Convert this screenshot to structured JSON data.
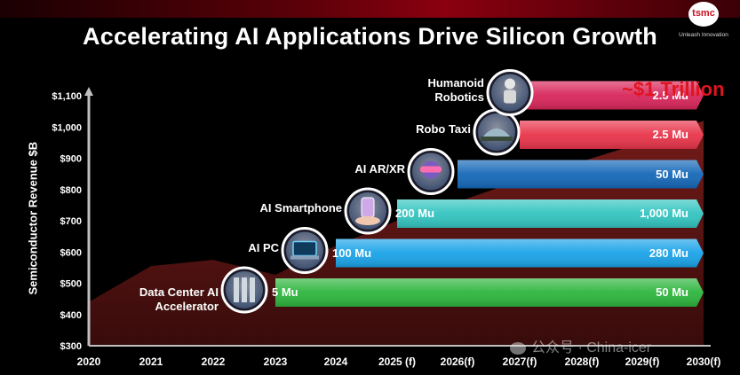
{
  "title": "Accelerating AI Applications Drive Silicon Growth",
  "logo": {
    "text": "tsmc",
    "tagline": "Unleash Innovation"
  },
  "watermark": "公众号 · China-icer",
  "chart_data": {
    "type": "bar",
    "ylabel": "Semiconductor Revenue $B",
    "yticks": [
      "$300",
      "$400",
      "$500",
      "$600",
      "$700",
      "$800",
      "$900",
      "$1,000",
      "$1,100"
    ],
    "ylim": [
      300,
      1100
    ],
    "xticks": [
      "2020",
      "2021",
      "2022",
      "2023",
      "2024",
      "2025 (f)",
      "2026(f)",
      "2027(f)",
      "2028(f)",
      "2029(f)",
      "2030(f)"
    ],
    "annotation": "~$1 Trillion",
    "area_revenue": [
      {
        "x": "2020",
        "y": 440
      },
      {
        "x": "2021",
        "y": 555
      },
      {
        "x": "2022",
        "y": 575
      },
      {
        "x": "2023",
        "y": 527
      },
      {
        "x": "2024",
        "y": 620
      },
      {
        "x": "2025 (f)",
        "y": 700
      },
      {
        "x": "2026(f)",
        "y": 760
      },
      {
        "x": "2027(f)",
        "y": 830
      },
      {
        "x": "2028(f)",
        "y": 890
      },
      {
        "x": "2029(f)",
        "y": 950
      },
      {
        "x": "2030(f)",
        "y": 1020
      }
    ],
    "applications": [
      {
        "name": "Data Center AI Accelerator",
        "label_lines": [
          "Data Center AI",
          "Accelerator"
        ],
        "start": "2023",
        "start_units": "5 Mu",
        "end_units": "50 Mu",
        "color": "#2db53d"
      },
      {
        "name": "AI PC",
        "label_lines": [
          "AI PC"
        ],
        "start": "2024",
        "start_units": "100 Mu",
        "end_units": "280 Mu",
        "color": "#1aa3e8"
      },
      {
        "name": "AI Smartphone",
        "label_lines": [
          "AI Smartphone"
        ],
        "start": "2025 (f)",
        "start_units": "200 Mu",
        "end_units": "1,000 Mu",
        "color": "#33c4c0"
      },
      {
        "name": "AI AR/XR",
        "label_lines": [
          "AI AR/XR"
        ],
        "start": "2026(f)",
        "start_units": "",
        "end_units": "50 Mu",
        "color": "#1568b8"
      },
      {
        "name": "Robo Taxi",
        "label_lines": [
          "Robo Taxi"
        ],
        "start": "2027(f)",
        "start_units": "",
        "end_units": "2.5 Mu",
        "color": "#e8344a"
      },
      {
        "name": "Humanoid Robotics",
        "label_lines": [
          "Humanoid",
          "Robotics"
        ],
        "start": "2027(f)",
        "start_units": "",
        "end_units": "2.5 Mu",
        "color": "#d8265a"
      }
    ]
  },
  "colors": {
    "brand": "#c8101e",
    "area": "#6e1a18",
    "axis": "#bfbfbf"
  }
}
